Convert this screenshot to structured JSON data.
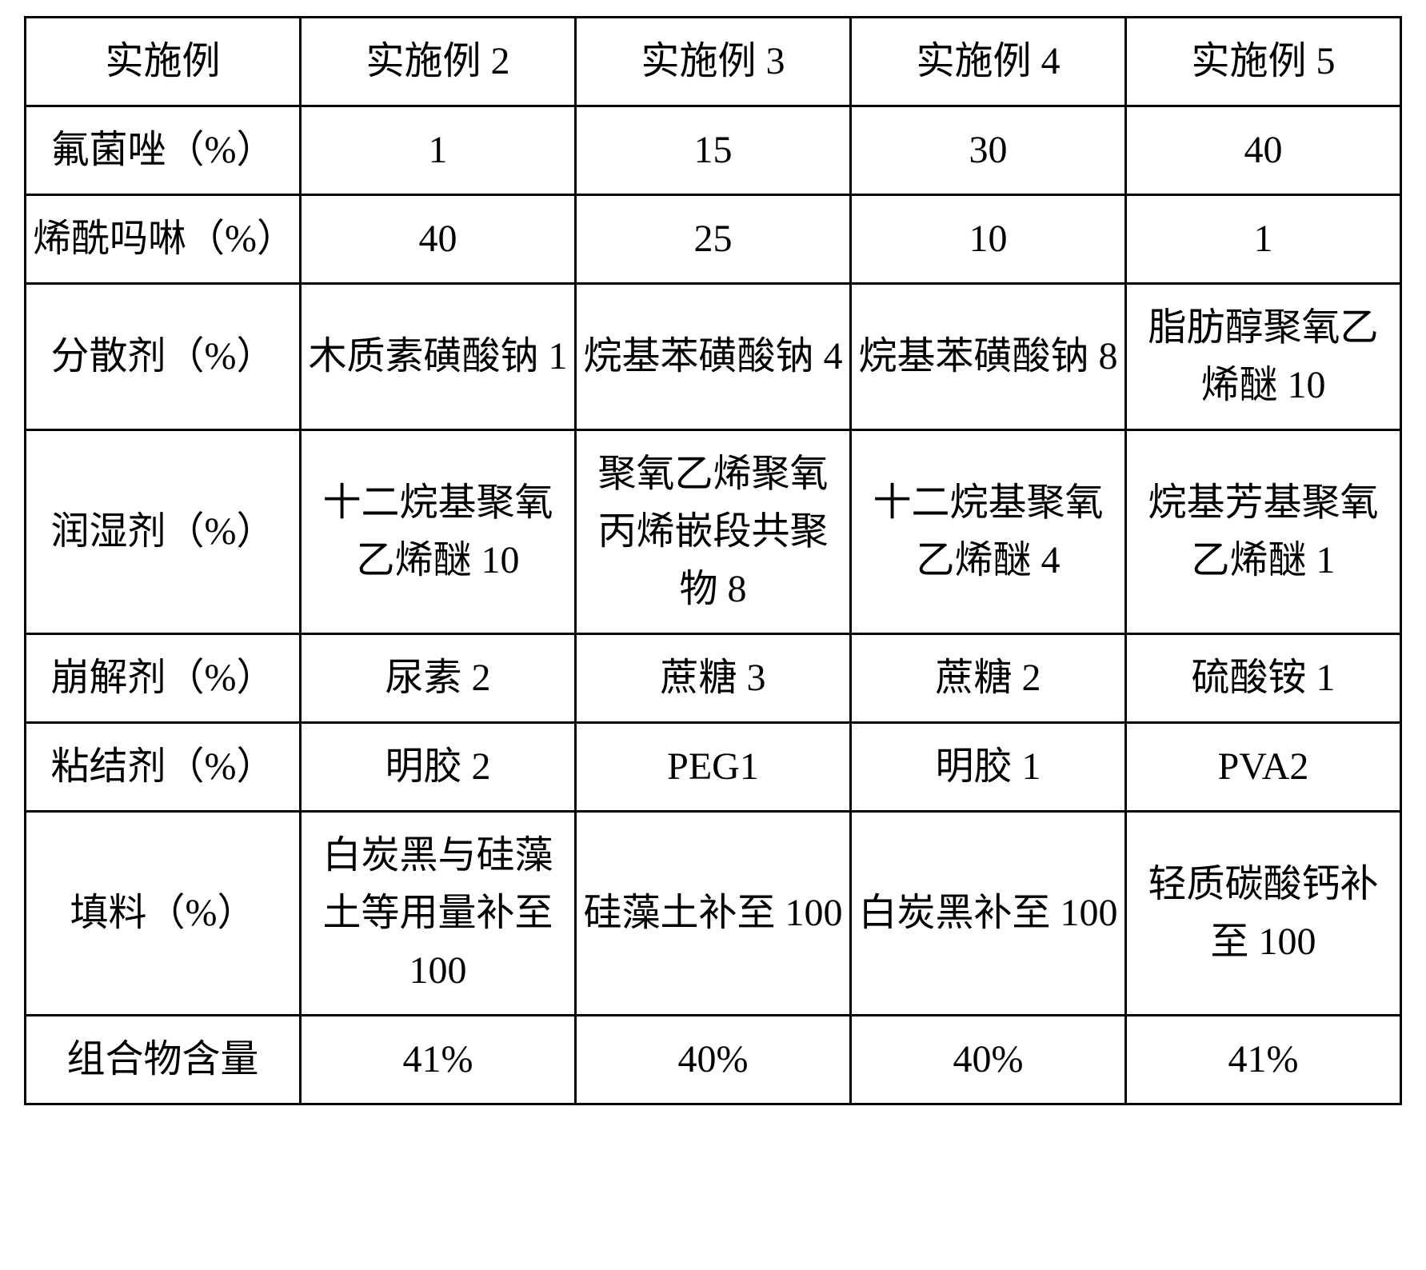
{
  "table": {
    "type": "table",
    "border_color": "#000000",
    "border_width": 3,
    "background_color": "#ffffff",
    "text_color": "#000000",
    "font_family": "SimSun",
    "font_size_pt": 36,
    "columns": [
      "实施例",
      "实施例 2",
      "实施例 3",
      "实施例 4",
      "实施例 5"
    ],
    "column_widths_percent": [
      20,
      20,
      20,
      20,
      20
    ],
    "rows": [
      {
        "label": "氟菌唑（%）",
        "cells": [
          "1",
          "15",
          "30",
          "40"
        ]
      },
      {
        "label": "烯酰吗啉（%）",
        "cells": [
          "40",
          "25",
          "10",
          "1"
        ]
      },
      {
        "label": "分散剂（%）",
        "cells": [
          "木质素磺酸钠 1",
          "烷基苯磺酸钠 4",
          "烷基苯磺酸钠 8",
          "脂肪醇聚氧乙烯醚 10"
        ]
      },
      {
        "label": "润湿剂（%）",
        "cells": [
          "十二烷基聚氧乙烯醚 10",
          "聚氧乙烯聚氧丙烯嵌段共聚物 8",
          "十二烷基聚氧乙烯醚 4",
          "烷基芳基聚氧乙烯醚 1"
        ]
      },
      {
        "label": "崩解剂（%）",
        "cells": [
          "尿素 2",
          "蔗糖 3",
          "蔗糖 2",
          "硫酸铵 1"
        ]
      },
      {
        "label": "粘结剂（%）",
        "cells": [
          "明胶 2",
          "PEG1",
          "明胶 1",
          "PVA2"
        ]
      },
      {
        "label": "填料（%）",
        "cells": [
          "白炭黑与硅藻土等用量补至 100",
          "硅藻土补至 100",
          "白炭黑补至 100",
          "轻质碳酸钙补至 100"
        ]
      },
      {
        "label": "组合物含量",
        "cells": [
          "41%",
          "40%",
          "40%",
          "41%"
        ]
      }
    ]
  }
}
